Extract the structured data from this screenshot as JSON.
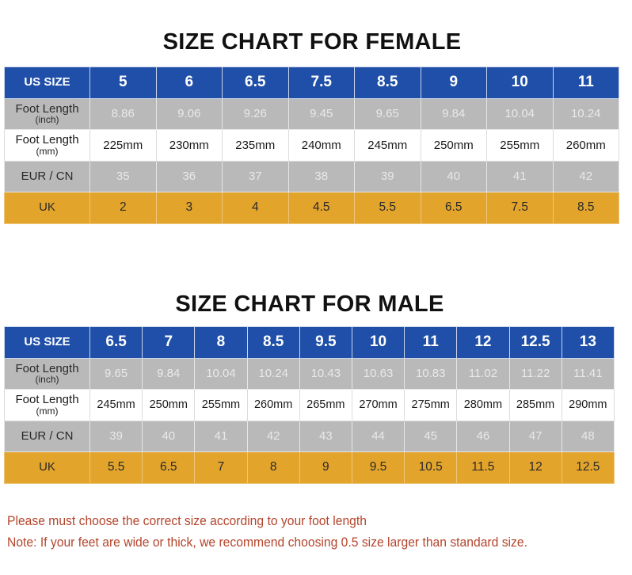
{
  "female": {
    "title": "SIZE CHART FOR FEMALE",
    "row_labels": {
      "us": "US SIZE",
      "inch_main": "Foot Length",
      "inch_sub": "(inch)",
      "mm_main": "Foot Length",
      "mm_sub": "(mm)",
      "eur": "EUR / CN",
      "uk": "UK"
    },
    "us": [
      "5",
      "6",
      "6.5",
      "7.5",
      "8.5",
      "9",
      "10",
      "11"
    ],
    "inch": [
      "8.86",
      "9.06",
      "9.26",
      "9.45",
      "9.65",
      "9.84",
      "10.04",
      "10.24"
    ],
    "mm": [
      "225mm",
      "230mm",
      "235mm",
      "240mm",
      "245mm",
      "250mm",
      "255mm",
      "260mm"
    ],
    "eur": [
      "35",
      "36",
      "37",
      "38",
      "39",
      "40",
      "41",
      "42"
    ],
    "uk": [
      "2",
      "3",
      "4",
      "4.5",
      "5.5",
      "6.5",
      "7.5",
      "8.5"
    ]
  },
  "male": {
    "title": "SIZE CHART FOR MALE",
    "row_labels": {
      "us": "US SIZE",
      "inch_main": "Foot Length",
      "inch_sub": "(inch)",
      "mm_main": "Foot Length",
      "mm_sub": "(mm)",
      "eur": "EUR / CN",
      "uk": "UK"
    },
    "us": [
      "6.5",
      "7",
      "8",
      "8.5",
      "9.5",
      "10",
      "11",
      "12",
      "12.5",
      "13"
    ],
    "inch": [
      "9.65",
      "9.84",
      "10.04",
      "10.24",
      "10.43",
      "10.63",
      "10.83",
      "11.02",
      "11.22",
      "11.41"
    ],
    "mm": [
      "245mm",
      "250mm",
      "255mm",
      "260mm",
      "265mm",
      "270mm",
      "275mm",
      "280mm",
      "285mm",
      "290mm"
    ],
    "eur": [
      "39",
      "40",
      "41",
      "42",
      "43",
      "44",
      "45",
      "46",
      "47",
      "48"
    ],
    "uk": [
      "5.5",
      "6.5",
      "7",
      "8",
      "9",
      "9.5",
      "10.5",
      "11.5",
      "12",
      "12.5"
    ]
  },
  "notes": [
    "Please must choose the correct size  according to your foot length",
    "Note: If your feet are wide or thick, we recommend choosing 0.5 size larger than standard size."
  ],
  "colors": {
    "header_blue": "#1f4fa8",
    "row_gray": "#b9b9b9",
    "row_white": "#ffffff",
    "row_orange": "#e3a42c",
    "note_red": "#b4452c"
  },
  "chart_data": [
    {
      "type": "table",
      "title": "SIZE CHART FOR FEMALE",
      "columns": [
        "US SIZE",
        "5",
        "6",
        "6.5",
        "7.5",
        "8.5",
        "9",
        "10",
        "11"
      ],
      "rows": [
        {
          "label": "Foot Length (inch)",
          "values": [
            8.86,
            9.06,
            9.26,
            9.45,
            9.65,
            9.84,
            10.04,
            10.24
          ]
        },
        {
          "label": "Foot Length (mm)",
          "values": [
            225,
            230,
            235,
            240,
            245,
            250,
            255,
            260
          ]
        },
        {
          "label": "EUR / CN",
          "values": [
            35,
            36,
            37,
            38,
            39,
            40,
            41,
            42
          ]
        },
        {
          "label": "UK",
          "values": [
            2,
            3,
            4,
            4.5,
            5.5,
            6.5,
            7.5,
            8.5
          ]
        }
      ]
    },
    {
      "type": "table",
      "title": "SIZE CHART FOR MALE",
      "columns": [
        "US SIZE",
        "6.5",
        "7",
        "8",
        "8.5",
        "9.5",
        "10",
        "11",
        "12",
        "12.5",
        "13"
      ],
      "rows": [
        {
          "label": "Foot Length (inch)",
          "values": [
            9.65,
            9.84,
            10.04,
            10.24,
            10.43,
            10.63,
            10.83,
            11.02,
            11.22,
            11.41
          ]
        },
        {
          "label": "Foot Length (mm)",
          "values": [
            245,
            250,
            255,
            260,
            265,
            270,
            275,
            280,
            285,
            290
          ]
        },
        {
          "label": "EUR / CN",
          "values": [
            39,
            40,
            41,
            42,
            43,
            44,
            45,
            46,
            47,
            48
          ]
        },
        {
          "label": "UK",
          "values": [
            5.5,
            6.5,
            7,
            8,
            9,
            9.5,
            10.5,
            11.5,
            12,
            12.5
          ]
        }
      ]
    }
  ]
}
